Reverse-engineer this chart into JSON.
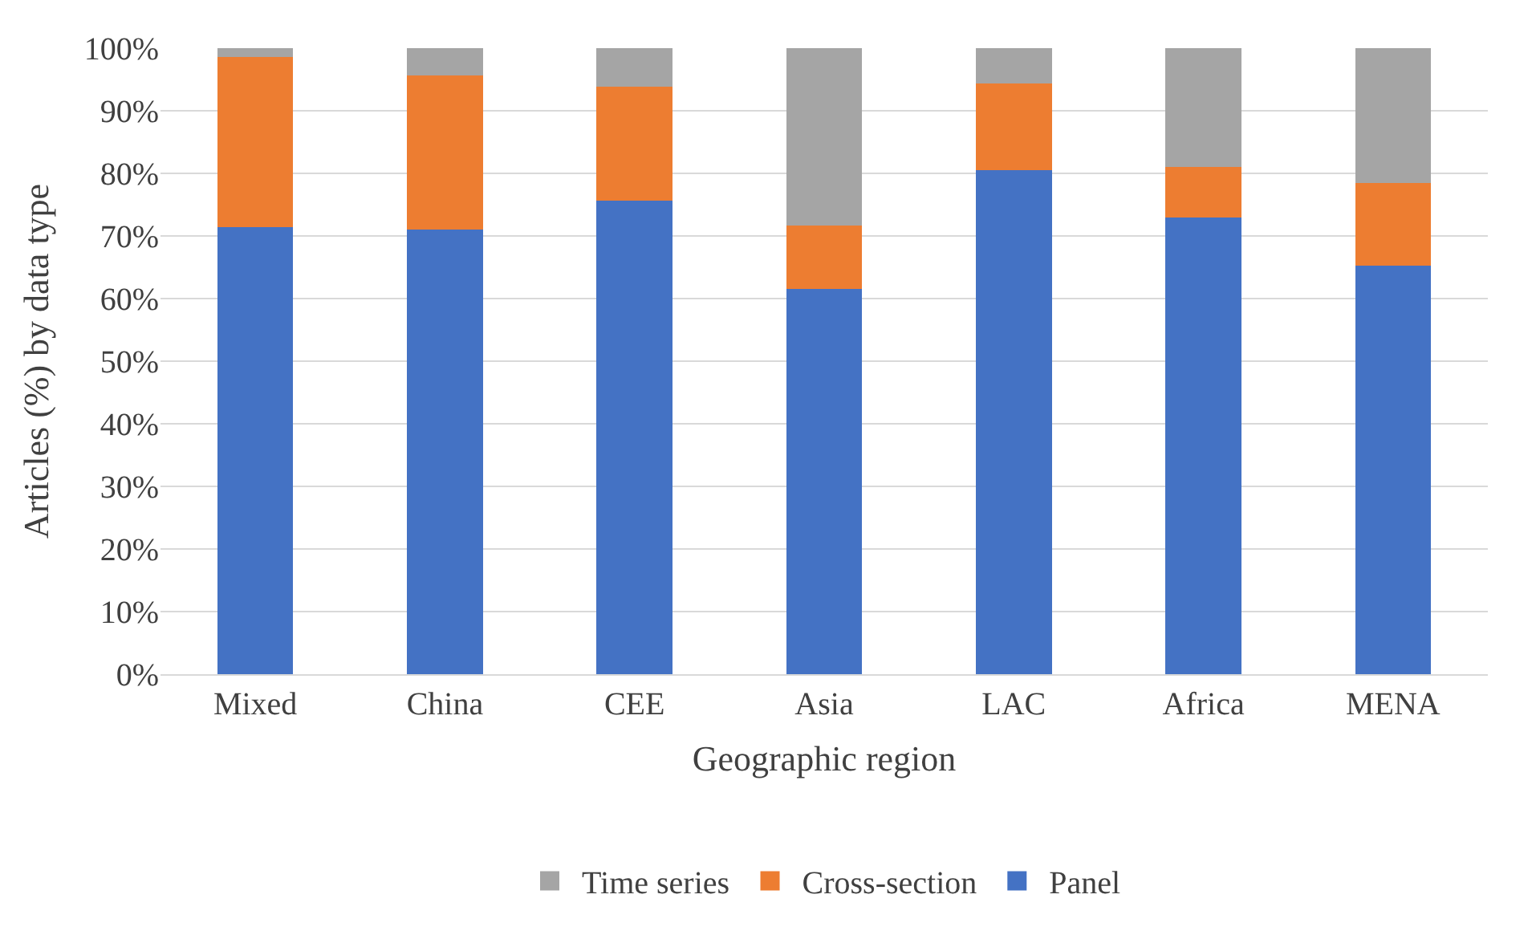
{
  "chart_data": {
    "type": "bar",
    "stacked": true,
    "xlabel": "Geographic region",
    "ylabel": "Articles (%) by data type",
    "categories": [
      "Mixed",
      "China",
      "CEE",
      "Asia",
      "LAC",
      "Africa",
      "MENA"
    ],
    "series": [
      {
        "name": "Panel",
        "color": "#4472c4",
        "values": [
          71.4,
          71.0,
          75.7,
          61.5,
          80.5,
          73.0,
          65.2
        ]
      },
      {
        "name": "Cross-section",
        "color": "#ed7d31",
        "values": [
          27.2,
          24.6,
          18.1,
          10.2,
          13.9,
          8.0,
          13.2
        ]
      },
      {
        "name": "Time series",
        "color": "#a5a5a5",
        "values": [
          1.4,
          4.4,
          6.2,
          28.3,
          5.6,
          19.0,
          21.6
        ]
      }
    ],
    "ylim": [
      0,
      100
    ],
    "yticks": [
      {
        "value": 0,
        "label": "0%"
      },
      {
        "value": 10,
        "label": "10%"
      },
      {
        "value": 20,
        "label": "20%"
      },
      {
        "value": 30,
        "label": "30%"
      },
      {
        "value": 40,
        "label": "40%"
      },
      {
        "value": 50,
        "label": "50%"
      },
      {
        "value": 60,
        "label": "60%"
      },
      {
        "value": 70,
        "label": "70%"
      },
      {
        "value": 80,
        "label": "80%"
      },
      {
        "value": 90,
        "label": "90%"
      },
      {
        "value": 100,
        "label": "100%"
      }
    ],
    "grid": "y",
    "legend": "bottom"
  }
}
